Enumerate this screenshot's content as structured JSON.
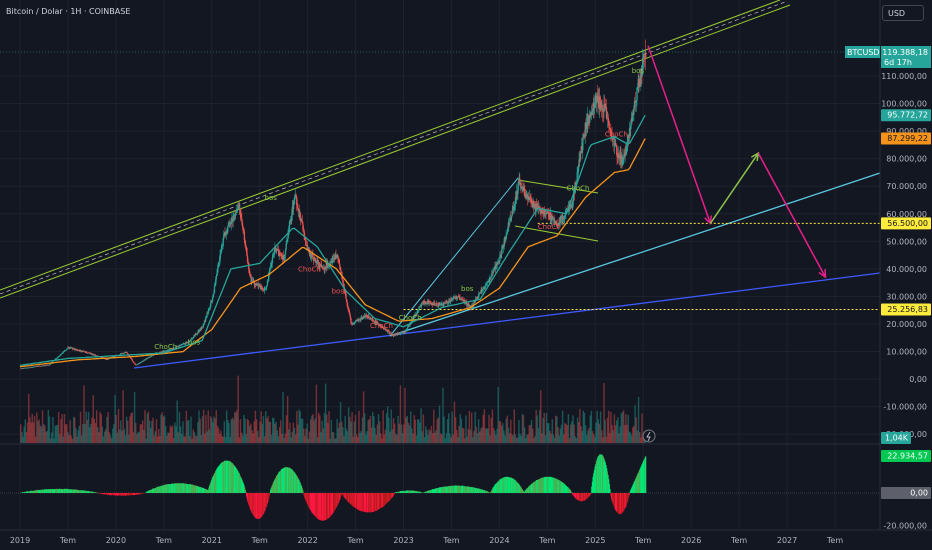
{
  "header": {
    "title": "Bitcoin / Dolar · 1H · COINBASE",
    "currency_button": "USD"
  },
  "colors": {
    "background": "#131722",
    "up": "#26a69a",
    "down": "#ef5350",
    "ema_fast": "#26a69a",
    "ema_slow": "#f7931a",
    "channel": "#9acd32",
    "trend_blue": "#3d5afe",
    "trend_cyan": "#5ac8e0",
    "arrow_magenta": "#e91e8c",
    "arrow_green": "#8bc34a",
    "dotted_yellow": "#ffeb3b"
  },
  "chart_data": {
    "type": "candlestick",
    "symbol": "BTCUSD",
    "x_axis": {
      "ticks": [
        {
          "label": "2019",
          "t": 2019.0
        },
        {
          "label": "Tem",
          "t": 2019.5
        },
        {
          "label": "2020",
          "t": 2020.0
        },
        {
          "label": "Tem",
          "t": 2020.5
        },
        {
          "label": "2021",
          "t": 2021.0
        },
        {
          "label": "Tem",
          "t": 2021.5
        },
        {
          "label": "2022",
          "t": 2022.0
        },
        {
          "label": "Tem",
          "t": 2022.5
        },
        {
          "label": "2023",
          "t": 2023.0
        },
        {
          "label": "Tem",
          "t": 2023.5
        },
        {
          "label": "2024",
          "t": 2024.0
        },
        {
          "label": "Tem",
          "t": 2024.5
        },
        {
          "label": "2025",
          "t": 2025.0
        },
        {
          "label": "Tem",
          "t": 2025.5
        },
        {
          "label": "2026",
          "t": 2026.0
        },
        {
          "label": "Tem",
          "t": 2026.5
        },
        {
          "label": "2027",
          "t": 2027.0
        },
        {
          "label": "Tem",
          "t": 2027.5
        }
      ]
    },
    "price_axis": {
      "ticks": [
        {
          "label": "110.000,00",
          "v": 110000
        },
        {
          "label": "100.000,00",
          "v": 100000
        },
        {
          "label": "90.000,00",
          "v": 90000
        },
        {
          "label": "80.000,00",
          "v": 80000
        },
        {
          "label": "70.000,00",
          "v": 70000
        },
        {
          "label": "60.000,00",
          "v": 60000
        },
        {
          "label": "50.000,00",
          "v": 50000
        },
        {
          "label": "40.000,00",
          "v": 40000
        },
        {
          "label": "30.000,00",
          "v": 30000
        },
        {
          "label": "20.000,00",
          "v": 20000
        },
        {
          "label": "10.000,00",
          "v": 10000
        },
        {
          "label": "0,00",
          "v": 0
        },
        {
          "label": "-10.000,00",
          "v": -10000
        },
        {
          "label": "-20.000,00",
          "v": -20000
        }
      ]
    },
    "price_badges": [
      {
        "label": "BTCUSD",
        "value": "119.388,18",
        "sub": "6d 17h",
        "v": 119388,
        "color": "#26a69a"
      },
      {
        "label": "",
        "value": "95.772,72",
        "v": 95772,
        "color": "#26a69a"
      },
      {
        "label": "",
        "value": "87.299,22",
        "v": 87299,
        "color": "#f7931a"
      },
      {
        "label": "",
        "value": "56.500,00",
        "v": 56500,
        "color": "#ffeb3b"
      },
      {
        "label": "",
        "value": "25.256,83",
        "v": 25256,
        "color": "#ffeb3b"
      }
    ],
    "volume_badge": "1,04K",
    "osc_axis": {
      "ticks": [
        {
          "label": "-20.000,00",
          "v": -20000
        }
      ]
    },
    "osc_badges": [
      {
        "value": "22.934,57",
        "v": 22934,
        "color": "#26a69a"
      },
      {
        "value": "0,00",
        "v": 0,
        "color": "#5d606b"
      }
    ],
    "price_path": [
      {
        "t": 2019.0,
        "v": 3800
      },
      {
        "t": 2019.3,
        "v": 5200
      },
      {
        "t": 2019.5,
        "v": 11500
      },
      {
        "t": 2019.7,
        "v": 9500
      },
      {
        "t": 2019.9,
        "v": 7200
      },
      {
        "t": 2020.1,
        "v": 9800
      },
      {
        "t": 2020.2,
        "v": 5000
      },
      {
        "t": 2020.4,
        "v": 9200
      },
      {
        "t": 2020.6,
        "v": 11200
      },
      {
        "t": 2020.75,
        "v": 13500
      },
      {
        "t": 2020.9,
        "v": 19000
      },
      {
        "t": 2021.0,
        "v": 29000
      },
      {
        "t": 2021.12,
        "v": 52000
      },
      {
        "t": 2021.28,
        "v": 63000
      },
      {
        "t": 2021.4,
        "v": 36000
      },
      {
        "t": 2021.55,
        "v": 32000
      },
      {
        "t": 2021.65,
        "v": 47000
      },
      {
        "t": 2021.75,
        "v": 44000
      },
      {
        "t": 2021.86,
        "v": 67000
      },
      {
        "t": 2022.0,
        "v": 46000
      },
      {
        "t": 2022.15,
        "v": 40000
      },
      {
        "t": 2022.3,
        "v": 45000
      },
      {
        "t": 2022.45,
        "v": 20000
      },
      {
        "t": 2022.6,
        "v": 23000
      },
      {
        "t": 2022.75,
        "v": 19500
      },
      {
        "t": 2022.88,
        "v": 16000
      },
      {
        "t": 2023.0,
        "v": 16800
      },
      {
        "t": 2023.2,
        "v": 28000
      },
      {
        "t": 2023.4,
        "v": 27000
      },
      {
        "t": 2023.55,
        "v": 30000
      },
      {
        "t": 2023.7,
        "v": 26000
      },
      {
        "t": 2023.9,
        "v": 37000
      },
      {
        "t": 2024.0,
        "v": 44000
      },
      {
        "t": 2024.2,
        "v": 71000
      },
      {
        "t": 2024.35,
        "v": 63000
      },
      {
        "t": 2024.5,
        "v": 60000
      },
      {
        "t": 2024.6,
        "v": 56000
      },
      {
        "t": 2024.75,
        "v": 63000
      },
      {
        "t": 2024.88,
        "v": 90000
      },
      {
        "t": 2025.0,
        "v": 102000
      },
      {
        "t": 2025.1,
        "v": 97000
      },
      {
        "t": 2025.2,
        "v": 84000
      },
      {
        "t": 2025.28,
        "v": 78000
      },
      {
        "t": 2025.38,
        "v": 95000
      },
      {
        "t": 2025.45,
        "v": 108000
      },
      {
        "t": 2025.52,
        "v": 119388
      }
    ],
    "ema_fast_path": [
      {
        "t": 2019.0,
        "v": 5000
      },
      {
        "t": 2019.5,
        "v": 7500
      },
      {
        "t": 2020.0,
        "v": 8500
      },
      {
        "t": 2020.5,
        "v": 9500
      },
      {
        "t": 2020.9,
        "v": 14000
      },
      {
        "t": 2021.2,
        "v": 40000
      },
      {
        "t": 2021.5,
        "v": 42000
      },
      {
        "t": 2021.85,
        "v": 55000
      },
      {
        "t": 2022.1,
        "v": 48000
      },
      {
        "t": 2022.4,
        "v": 32000
      },
      {
        "t": 2022.7,
        "v": 22000
      },
      {
        "t": 2023.0,
        "v": 19000
      },
      {
        "t": 2023.4,
        "v": 26000
      },
      {
        "t": 2023.8,
        "v": 29000
      },
      {
        "t": 2024.1,
        "v": 46000
      },
      {
        "t": 2024.4,
        "v": 62000
      },
      {
        "t": 2024.7,
        "v": 60000
      },
      {
        "t": 2024.95,
        "v": 85000
      },
      {
        "t": 2025.2,
        "v": 88000
      },
      {
        "t": 2025.35,
        "v": 85000
      },
      {
        "t": 2025.52,
        "v": 95772
      }
    ],
    "ema_slow_path": [
      {
        "t": 2019.0,
        "v": 4500
      },
      {
        "t": 2019.6,
        "v": 7000
      },
      {
        "t": 2020.2,
        "v": 8200
      },
      {
        "t": 2020.7,
        "v": 10000
      },
      {
        "t": 2021.0,
        "v": 18000
      },
      {
        "t": 2021.3,
        "v": 33000
      },
      {
        "t": 2021.6,
        "v": 38000
      },
      {
        "t": 2021.95,
        "v": 48000
      },
      {
        "t": 2022.3,
        "v": 40000
      },
      {
        "t": 2022.6,
        "v": 27000
      },
      {
        "t": 2022.95,
        "v": 21000
      },
      {
        "t": 2023.3,
        "v": 22000
      },
      {
        "t": 2023.7,
        "v": 26000
      },
      {
        "t": 2024.0,
        "v": 33000
      },
      {
        "t": 2024.3,
        "v": 48000
      },
      {
        "t": 2024.6,
        "v": 52000
      },
      {
        "t": 2024.9,
        "v": 66000
      },
      {
        "t": 2025.2,
        "v": 75000
      },
      {
        "t": 2025.35,
        "v": 76000
      },
      {
        "t": 2025.52,
        "v": 87299
      }
    ],
    "annotations": [
      {
        "text": "ChoCh",
        "t": 2020.4,
        "v": 11000,
        "color": "#8bc34a"
      },
      {
        "text": "bos",
        "t": 2020.75,
        "v": 12500,
        "color": "#8bc34a"
      },
      {
        "text": "bos",
        "t": 2021.55,
        "v": 65000,
        "color": "#8bc34a"
      },
      {
        "text": "ChoCh",
        "t": 2021.9,
        "v": 39000,
        "color": "#ef5350"
      },
      {
        "text": "bos",
        "t": 2022.25,
        "v": 31000,
        "color": "#ef5350"
      },
      {
        "text": "ChoCh",
        "t": 2022.65,
        "v": 18500,
        "color": "#ef5350"
      },
      {
        "text": "ChoCh",
        "t": 2022.95,
        "v": 21500,
        "color": "#8bc34a"
      },
      {
        "text": "bos",
        "t": 2023.6,
        "v": 32000,
        "color": "#8bc34a"
      },
      {
        "text": "ChoCh",
        "t": 2024.4,
        "v": 54500,
        "color": "#ef5350"
      },
      {
        "text": "ChoCh",
        "t": 2024.7,
        "v": 68500,
        "color": "#8bc34a"
      },
      {
        "text": "ChoCh",
        "t": 2025.1,
        "v": 88000,
        "color": "#ef5350"
      },
      {
        "text": "bos",
        "t": 2025.38,
        "v": 111000,
        "color": "#8bc34a"
      }
    ],
    "projection": [
      {
        "t": 2025.55,
        "v": 121000
      },
      {
        "t": 2026.2,
        "v": 56500
      },
      {
        "t": 2026.7,
        "v": 82000
      },
      {
        "t": 2027.4,
        "v": 37000
      }
    ],
    "levels": [
      {
        "v": 56500,
        "from": 2024.4
      },
      {
        "v": 25256,
        "from": 2023.0
      }
    ]
  }
}
